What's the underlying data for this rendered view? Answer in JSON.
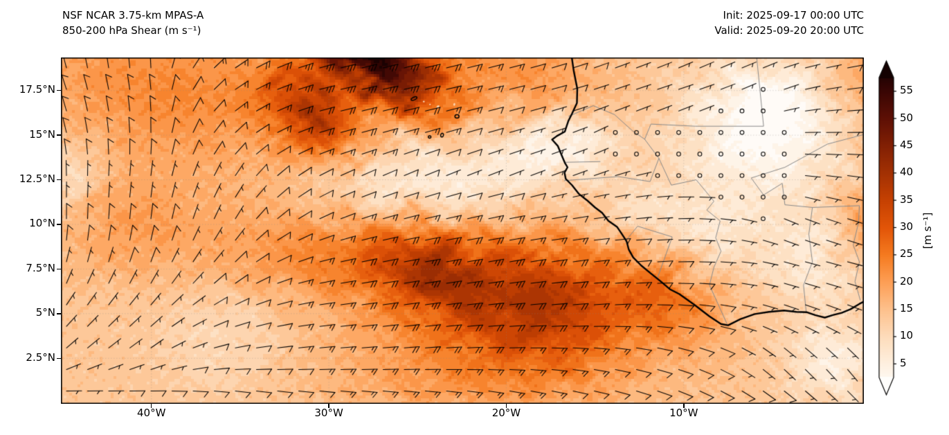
{
  "header": {
    "title_line1": "NSF NCAR 3.75-km MPAS-A",
    "title_line2": "850-200 hPa Shear (m s⁻¹)",
    "init": "Init: 2025-09-17 00:00 UTC",
    "valid": "Valid: 2025-09-20 20:00 UTC"
  },
  "colorbar": {
    "label": "[m s⁻¹]",
    "ticks": [
      5,
      10,
      15,
      20,
      25,
      30,
      35,
      40,
      45,
      50,
      55
    ],
    "range_min": 2.5,
    "range_max": 57.5,
    "extend": "both",
    "anchors": {
      "values": [
        0,
        5,
        10,
        15,
        20,
        25,
        30,
        35,
        40,
        45,
        50,
        55,
        60
      ],
      "colors": [
        "#ffffff",
        "#fef0e0",
        "#fddcbb",
        "#fdc18d",
        "#fd9f56",
        "#f57b20",
        "#e25508",
        "#c64102",
        "#a33103",
        "#822004",
        "#5e1005",
        "#3a0604",
        "#100001"
      ]
    }
  },
  "axes": {
    "lat_ticks": [
      {
        "label": "2.5°N",
        "deg": 2.5
      },
      {
        "label": "5°N",
        "deg": 5
      },
      {
        "label": "7.5°N",
        "deg": 7.5
      },
      {
        "label": "10°N",
        "deg": 10
      },
      {
        "label": "12.5°N",
        "deg": 12.5
      },
      {
        "label": "15°N",
        "deg": 15
      },
      {
        "label": "17.5°N",
        "deg": 17.5
      }
    ],
    "lon_ticks": [
      {
        "label": "40°W",
        "deg": -40
      },
      {
        "label": "30°W",
        "deg": -30
      },
      {
        "label": "20°W",
        "deg": -20
      },
      {
        "label": "10°W",
        "deg": -10
      }
    ],
    "grid_lats": [
      2.5,
      5,
      7.5,
      10,
      12.5,
      15,
      17.5
    ],
    "grid_lons": [
      -40,
      -30,
      -20,
      -10
    ]
  },
  "chart_data": {
    "type": "heatmap",
    "title": "NSF NCAR 3.75-km MPAS-A 850-200 hPa Shear",
    "units": "m s⁻¹",
    "extent": {
      "lon_min": -45.1,
      "lon_max": 0.15,
      "lat_min": -0.05,
      "lat_max": 19.35
    },
    "levels_step": 2.5,
    "base_value": 14,
    "shear_blobs": [
      [
        -27.8,
        19.6,
        3.2,
        1.4,
        -35,
        44
      ],
      [
        -31.0,
        16.2,
        2.2,
        1.3,
        -40,
        22
      ],
      [
        -39.0,
        17.5,
        6.0,
        3.0,
        -10,
        9
      ],
      [
        -20.0,
        18.7,
        4.0,
        1.6,
        -15,
        8
      ],
      [
        -20.5,
        6.3,
        5.5,
        2.6,
        -8,
        16
      ],
      [
        -24.3,
        7.4,
        2.2,
        1.4,
        -20,
        12
      ],
      [
        -17.5,
        5.2,
        3.2,
        2.2,
        0,
        10
      ],
      [
        -31.0,
        8.3,
        4.5,
        1.8,
        -5,
        7
      ],
      [
        -11.0,
        5.8,
        2.2,
        1.5,
        -30,
        9
      ],
      [
        -22.0,
        1.5,
        6.0,
        1.8,
        0,
        6
      ],
      [
        -41.5,
        10.0,
        3.0,
        2.0,
        0,
        6
      ],
      [
        0.3,
        9.8,
        1.5,
        1.8,
        0,
        8
      ],
      [
        0.5,
        18.0,
        2.0,
        2.5,
        0,
        6
      ],
      [
        -23.5,
        12.3,
        3.2,
        1.5,
        -10,
        -9
      ],
      [
        -28.5,
        12.2,
        2.0,
        1.3,
        0,
        -5
      ],
      [
        -19.0,
        13.9,
        2.0,
        1.3,
        0,
        -7
      ],
      [
        -15.9,
        14.6,
        1.6,
        1.4,
        0,
        -8
      ],
      [
        -5.5,
        14.5,
        3.5,
        2.6,
        0,
        -11
      ],
      [
        -5.0,
        17.0,
        2.5,
        1.6,
        0,
        -7
      ],
      [
        -2.5,
        8.0,
        2.2,
        1.8,
        0,
        -8
      ],
      [
        -8.5,
        9.6,
        1.8,
        1.4,
        0,
        -6
      ],
      [
        -1.6,
        2.3,
        1.8,
        1.6,
        0,
        -9
      ],
      [
        -44.8,
        12.6,
        1.6,
        1.6,
        0,
        -6
      ],
      [
        -36.0,
        3.5,
        2.5,
        2.0,
        0,
        -4
      ],
      [
        -12.5,
        10.8,
        1.5,
        1.2,
        0,
        -5
      ]
    ],
    "wind_grid": {
      "lons": [
        -45,
        -40,
        -35,
        -30,
        -25,
        -20,
        -15,
        -10,
        -5,
        0
      ],
      "lats": [
        0,
        2.5,
        5,
        7.5,
        10,
        12.5,
        15,
        17.5,
        20
      ],
      "uv": [
        [
          [
            -8,
            1
          ],
          [
            -9,
            1
          ],
          [
            -10,
            2
          ],
          [
            -12,
            2
          ],
          [
            -13,
            2
          ],
          [
            -12,
            3
          ],
          [
            -11,
            3
          ],
          [
            -9,
            4
          ],
          [
            -7,
            5
          ],
          [
            -5,
            5
          ]
        ],
        [
          [
            -4,
            -3
          ],
          [
            -5,
            -3
          ],
          [
            -9,
            -1
          ],
          [
            -14,
            -1
          ],
          [
            -17,
            -1
          ],
          [
            -16,
            0
          ],
          [
            -13,
            2
          ],
          [
            -9,
            3
          ],
          [
            -4,
            4
          ],
          [
            -2,
            3
          ]
        ],
        [
          [
            -4,
            -5
          ],
          [
            -5,
            -5
          ],
          [
            -8,
            -3
          ],
          [
            -16,
            -2
          ],
          [
            -22,
            -3
          ],
          [
            -22,
            -2
          ],
          [
            -17,
            -1
          ],
          [
            -10,
            1
          ],
          [
            -6,
            2
          ],
          [
            -5,
            2
          ]
        ],
        [
          [
            -2,
            -7
          ],
          [
            -3,
            -7
          ],
          [
            -6,
            -5
          ],
          [
            -15,
            -3
          ],
          [
            -24,
            -4
          ],
          [
            -25,
            -4
          ],
          [
            -18,
            -2
          ],
          [
            -8,
            0
          ],
          [
            -4,
            1
          ],
          [
            -4,
            1
          ]
        ],
        [
          [
            0,
            -8
          ],
          [
            -1,
            -8
          ],
          [
            -4,
            -6
          ],
          [
            -10,
            -4
          ],
          [
            -18,
            -4
          ],
          [
            -16,
            -3
          ],
          [
            -8,
            -1
          ],
          [
            -4,
            0
          ],
          [
            -2,
            1
          ],
          [
            -6,
            2
          ]
        ],
        [
          [
            0,
            -7
          ],
          [
            -1,
            -7
          ],
          [
            -4,
            -6
          ],
          [
            -8,
            -4
          ],
          [
            -7,
            -3
          ],
          [
            -5,
            -2
          ],
          [
            -3,
            -1
          ],
          [
            -2,
            0
          ],
          [
            -1,
            0
          ],
          [
            -7,
            1
          ]
        ],
        [
          [
            2,
            -8
          ],
          [
            0,
            -9
          ],
          [
            -8,
            -7
          ],
          [
            -18,
            -5
          ],
          [
            -14,
            -4
          ],
          [
            -7,
            -2
          ],
          [
            -2,
            -1
          ],
          [
            -2,
            -1
          ],
          [
            -1,
            0
          ],
          [
            -8,
            0
          ]
        ],
        [
          [
            3,
            -9
          ],
          [
            1,
            -10
          ],
          [
            -13,
            -8
          ],
          [
            -26,
            -6
          ],
          [
            -22,
            -5
          ],
          [
            -12,
            -3
          ],
          [
            -6,
            -2
          ],
          [
            -3,
            -1
          ],
          [
            -2,
            -1
          ],
          [
            -9,
            -1
          ]
        ],
        [
          [
            2,
            -9
          ],
          [
            0,
            -10
          ],
          [
            -14,
            -9
          ],
          [
            -27,
            -7
          ],
          [
            -24,
            -6
          ],
          [
            -15,
            -4
          ],
          [
            -8,
            -3
          ],
          [
            -4,
            -2
          ],
          [
            -3,
            -1
          ],
          [
            -8,
            -2
          ]
        ]
      ]
    },
    "barb_convention": {
      "half_ms": 5,
      "full_ms": 10,
      "flag_ms": 50,
      "calm_below_ms": 2.5
    },
    "geography": {
      "coastline": [
        [
          -16.33,
          19.5
        ],
        [
          -16.2,
          18.6
        ],
        [
          -16.0,
          17.6
        ],
        [
          -16.02,
          16.8
        ],
        [
          -16.3,
          16.2
        ],
        [
          -16.5,
          15.8
        ],
        [
          -16.7,
          15.2
        ],
        [
          -17.15,
          14.95
        ],
        [
          -17.42,
          14.75
        ],
        [
          -17.1,
          14.4
        ],
        [
          -16.85,
          13.8
        ],
        [
          -16.7,
          13.45
        ],
        [
          -16.55,
          13.2
        ],
        [
          -16.72,
          12.9
        ],
        [
          -16.65,
          12.55
        ],
        [
          -16.3,
          12.2
        ],
        [
          -15.9,
          11.7
        ],
        [
          -15.45,
          11.35
        ],
        [
          -15.0,
          10.95
        ],
        [
          -14.6,
          10.65
        ],
        [
          -14.25,
          10.2
        ],
        [
          -13.75,
          9.85
        ],
        [
          -13.48,
          9.45
        ],
        [
          -13.22,
          9.05
        ],
        [
          -13.1,
          8.6
        ],
        [
          -12.85,
          8.15
        ],
        [
          -12.4,
          7.7
        ],
        [
          -11.85,
          7.25
        ],
        [
          -11.35,
          6.85
        ],
        [
          -10.75,
          6.35
        ],
        [
          -10.25,
          6.1
        ],
        [
          -9.4,
          5.5
        ],
        [
          -8.55,
          4.85
        ],
        [
          -7.9,
          4.42
        ],
        [
          -7.5,
          4.35
        ],
        [
          -6.8,
          4.7
        ],
        [
          -6.0,
          4.98
        ],
        [
          -5.2,
          5.1
        ],
        [
          -4.35,
          5.18
        ],
        [
          -3.65,
          5.1
        ],
        [
          -3.05,
          5.08
        ],
        [
          -2.6,
          4.92
        ],
        [
          -2.05,
          4.78
        ],
        [
          -1.6,
          4.92
        ],
        [
          -1.1,
          5.05
        ],
        [
          -0.6,
          5.25
        ],
        [
          -0.1,
          5.55
        ],
        [
          0.3,
          5.75
        ]
      ],
      "borders": [
        [
          [
            -16.5,
            16.05
          ],
          [
            -15.1,
            16.65
          ],
          [
            -13.9,
            16.15
          ],
          [
            -12.9,
            15.25
          ],
          [
            -12.2,
            14.77
          ]
        ],
        [
          [
            -12.2,
            14.77
          ],
          [
            -11.85,
            15.62
          ],
          [
            -9.35,
            15.5
          ],
          [
            -5.5,
            15.5
          ]
        ],
        [
          [
            -5.5,
            15.5
          ],
          [
            -5.9,
            19.45
          ]
        ],
        [
          [
            -12.2,
            14.77
          ],
          [
            -11.4,
            13.7
          ],
          [
            -11.9,
            12.4
          ],
          [
            -13.7,
            12.68
          ],
          [
            -16.75,
            12.45
          ]
        ],
        [
          [
            -11.4,
            13.7
          ],
          [
            -10.7,
            12.2
          ],
          [
            -9.3,
            12.5
          ],
          [
            -8.3,
            11.3
          ],
          [
            -8.7,
            10.8
          ],
          [
            -7.95,
            10.2
          ],
          [
            -8.2,
            9.25
          ],
          [
            -7.9,
            8.5
          ],
          [
            -8.3,
            7.6
          ],
          [
            -8.55,
            6.6
          ],
          [
            -7.55,
            4.4
          ]
        ],
        [
          [
            -13.3,
            9.05
          ],
          [
            -12.6,
            9.9
          ],
          [
            -10.65,
            9.3
          ]
        ],
        [
          [
            -10.65,
            9.3
          ],
          [
            -11.5,
            6.95
          ]
        ],
        [
          [
            -3.1,
            5.1
          ],
          [
            -3.25,
            6.6
          ],
          [
            -2.75,
            7.9
          ],
          [
            -2.95,
            9.45
          ],
          [
            -2.75,
            10.95
          ]
        ],
        [
          [
            -2.75,
            10.95
          ],
          [
            -4.3,
            11.1
          ],
          [
            -4.45,
            12.3
          ],
          [
            -5.5,
            11.65
          ],
          [
            -6.2,
            12.6
          ],
          [
            -4.3,
            13.2
          ],
          [
            -1.9,
            14.5
          ],
          [
            0.2,
            15.05
          ]
        ],
        [
          [
            -2.75,
            10.95
          ],
          [
            -0.1,
            11.05
          ]
        ],
        [
          [
            -0.05,
            5.75
          ],
          [
            -0.35,
            6.8
          ],
          [
            -0.1,
            7.9
          ],
          [
            -0.45,
            8.85
          ],
          [
            -0.15,
            10.1
          ],
          [
            -0.1,
            11.05
          ]
        ],
        [
          [
            -16.7,
            13.48
          ],
          [
            -14.7,
            13.52
          ]
        ]
      ],
      "islands": [
        [
          -25.2,
          17.05,
          4.5,
          2.0,
          -25,
          0
        ],
        [
          -24.65,
          16.88,
          1.4,
          1.1,
          0,
          1
        ],
        [
          -24.3,
          16.72,
          1.2,
          1.0,
          0,
          1
        ],
        [
          -23.85,
          16.6,
          2.4,
          1.6,
          -30,
          1
        ],
        [
          -22.93,
          16.72,
          1.4,
          2.0,
          10,
          1
        ],
        [
          -22.78,
          16.05,
          3.0,
          2.5,
          0,
          0
        ],
        [
          -23.15,
          15.18,
          1.1,
          1.1,
          0,
          1
        ],
        [
          -23.62,
          15.0,
          2.0,
          2.8,
          15,
          0
        ],
        [
          -24.32,
          14.9,
          1.9,
          1.7,
          0,
          0
        ],
        [
          -24.72,
          14.82,
          0.9,
          0.9,
          0,
          1
        ],
        [
          -15.95,
          11.28,
          1.5,
          1.2,
          0,
          1
        ],
        [
          -16.2,
          11.05,
          1.2,
          1.0,
          0,
          1
        ],
        [
          -15.7,
          10.95,
          1.2,
          1.0,
          0,
          1
        ],
        [
          -16.0,
          10.8,
          0.9,
          0.8,
          0,
          1
        ]
      ]
    }
  }
}
